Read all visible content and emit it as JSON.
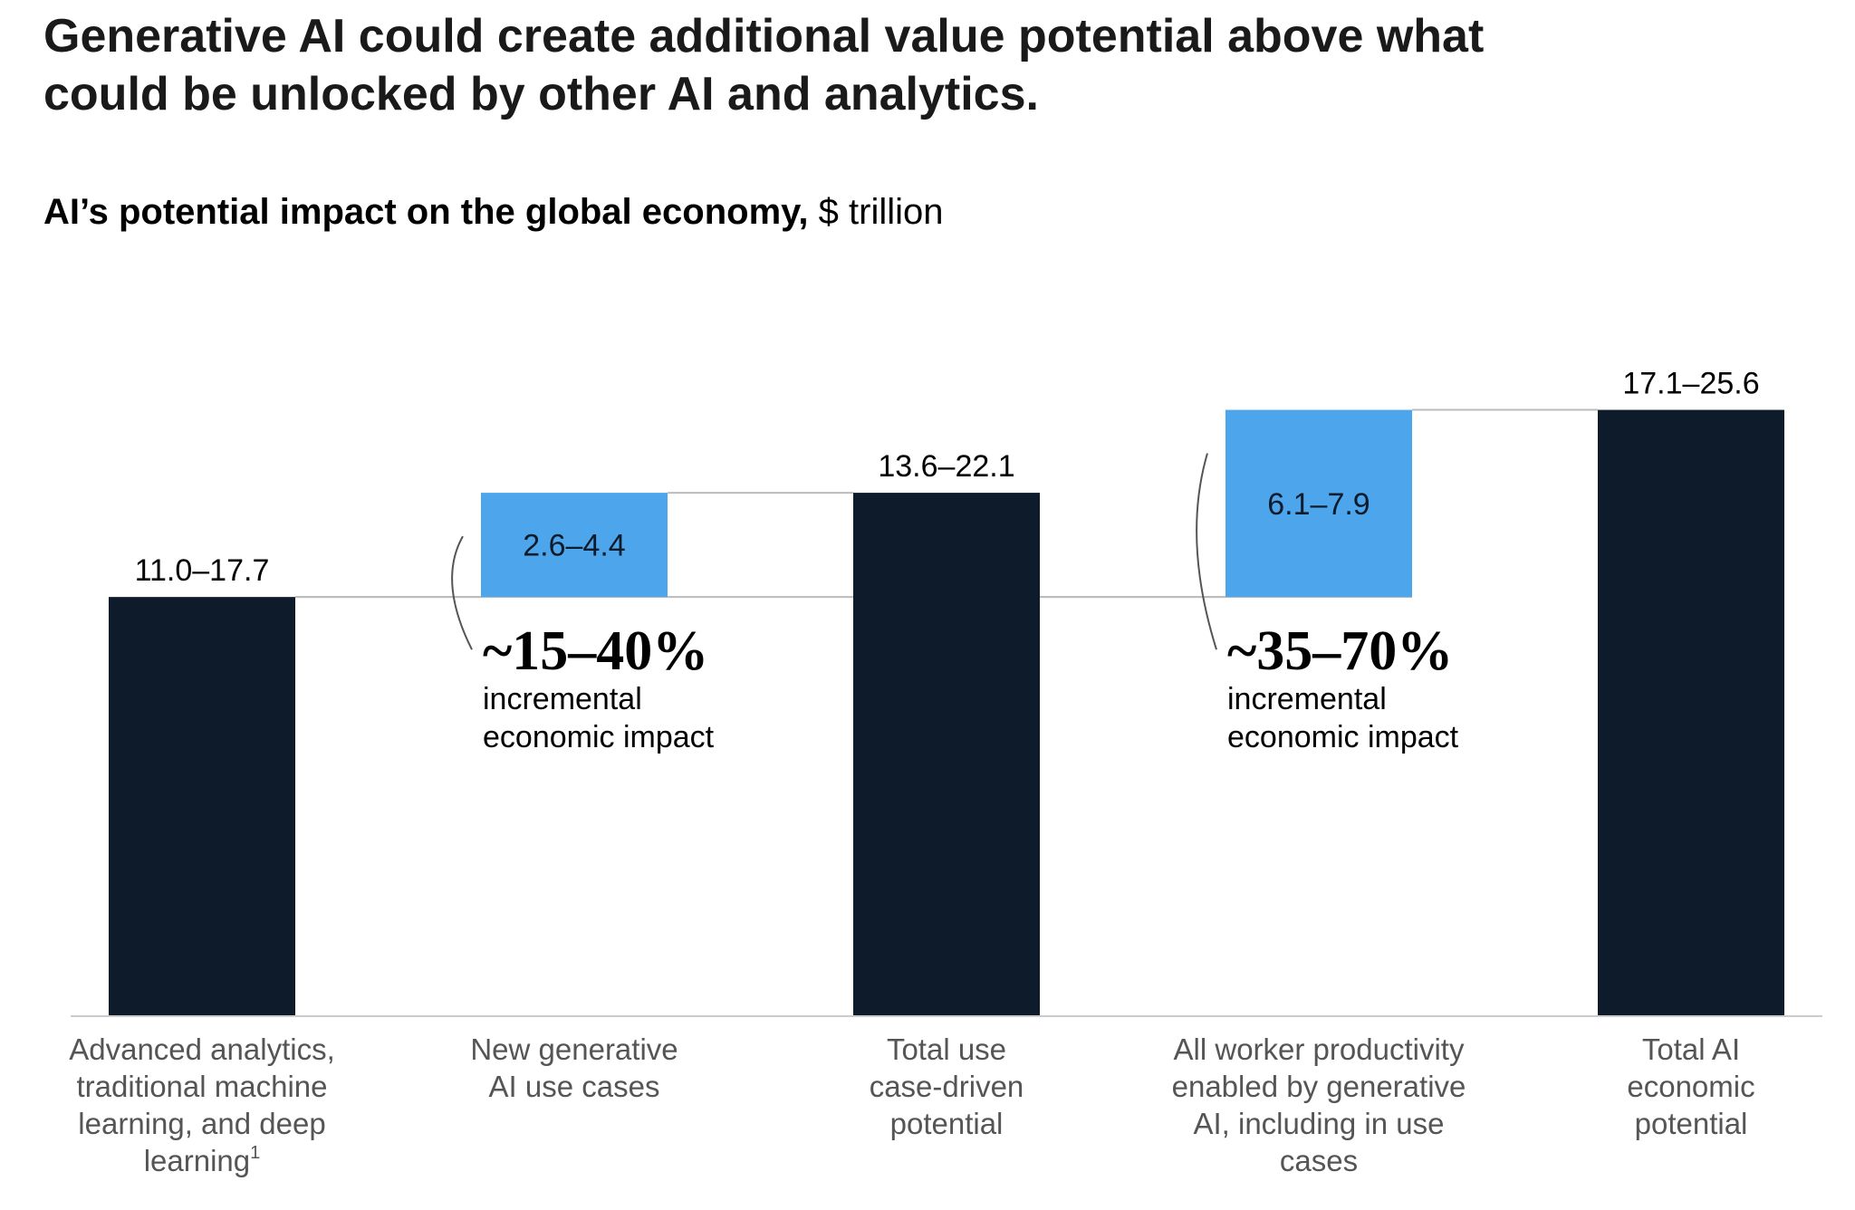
{
  "headline": "Generative AI could create additional value potential above what could be unlocked by other AI and analytics.",
  "subtitle_bold": "AI’s potential impact on the global economy,",
  "subtitle_unit": "$ trillion",
  "colors": {
    "dark_bar": "#0d1b2a",
    "blue_bar": "#4da6ec",
    "baseline": "#cccccc",
    "connector": "#bbbbbb",
    "category_text": "#555555"
  },
  "chart_data": {
    "type": "bar",
    "variant": "waterfall",
    "title": "AI’s potential impact on the global economy, $ trillion",
    "value_basis": "upper bound of each range",
    "categories": [
      [
        "Advanced analytics,",
        "traditional machine",
        "learning, and deep",
        "learning"
      ],
      [
        "New generative",
        "AI use cases"
      ],
      [
        "Total use",
        "case-driven",
        "potential"
      ],
      [
        "All worker productivity",
        "enabled by generative",
        "AI, including in use",
        "cases"
      ],
      [
        "Total AI",
        "economic",
        "potential"
      ]
    ],
    "category_footnotes": [
      "1",
      "",
      "",
      "",
      ""
    ],
    "bars": [
      {
        "kind": "total",
        "label": "11.0–17.7",
        "low": 11.0,
        "high": 17.7,
        "start": 0,
        "end": 17.7
      },
      {
        "kind": "increment",
        "label": "2.6–4.4",
        "low": 2.6,
        "high": 4.4,
        "start": 17.7,
        "end": 22.1
      },
      {
        "kind": "total",
        "label": "13.6–22.1",
        "low": 13.6,
        "high": 22.1,
        "start": 0,
        "end": 22.1
      },
      {
        "kind": "increment",
        "label": "6.1–7.9",
        "low": 6.1,
        "high": 7.9,
        "start": 17.7,
        "end": 25.6
      },
      {
        "kind": "total",
        "label": "17.1–25.6",
        "low": 17.1,
        "high": 25.6,
        "start": 0,
        "end": 25.6
      }
    ],
    "annotations": [
      {
        "bar": 1,
        "pct": "~15–40%",
        "text": [
          "incremental",
          "economic impact"
        ]
      },
      {
        "bar": 3,
        "pct": "~35–70%",
        "text": [
          "incremental",
          "economic impact"
        ]
      }
    ],
    "ylim": [
      0,
      25.6
    ],
    "grid": false,
    "legend": "none"
  }
}
